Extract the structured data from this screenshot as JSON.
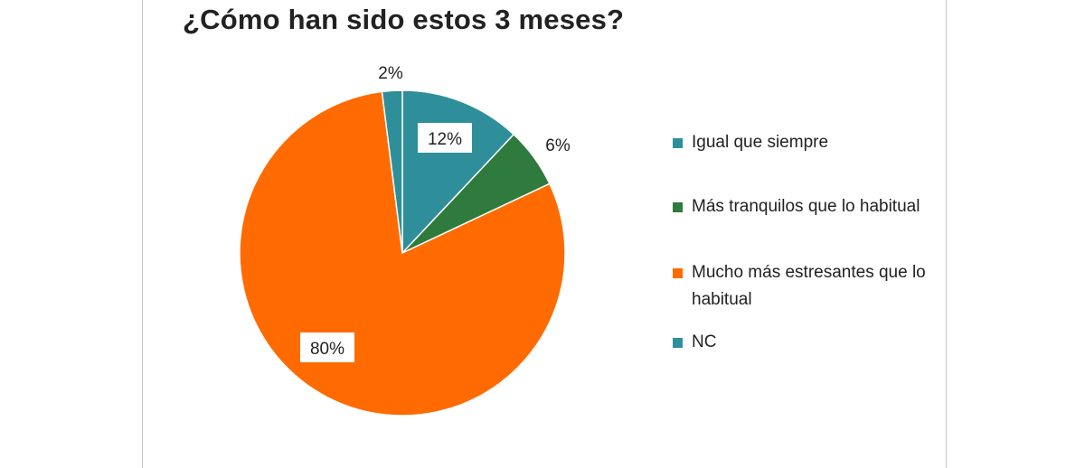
{
  "chart_data": {
    "type": "pie",
    "title": "¿Cómo han sido estos 3 meses?",
    "slices": [
      {
        "label": "Igual que siempre",
        "value": 12,
        "data_label": "12%",
        "color": "#2e8f9b"
      },
      {
        "label": "Más tranquilos que lo habitual",
        "value": 6,
        "data_label": "6%",
        "color": "#2f7a3d"
      },
      {
        "label": "Mucho más estresantes que lo habitual",
        "value": 80,
        "data_label": "80%",
        "color": "#ff6b00"
      },
      {
        "label": "NC",
        "value": 2,
        "data_label": "2%",
        "color": "#2e8f9b"
      }
    ],
    "legend_position": "right"
  }
}
